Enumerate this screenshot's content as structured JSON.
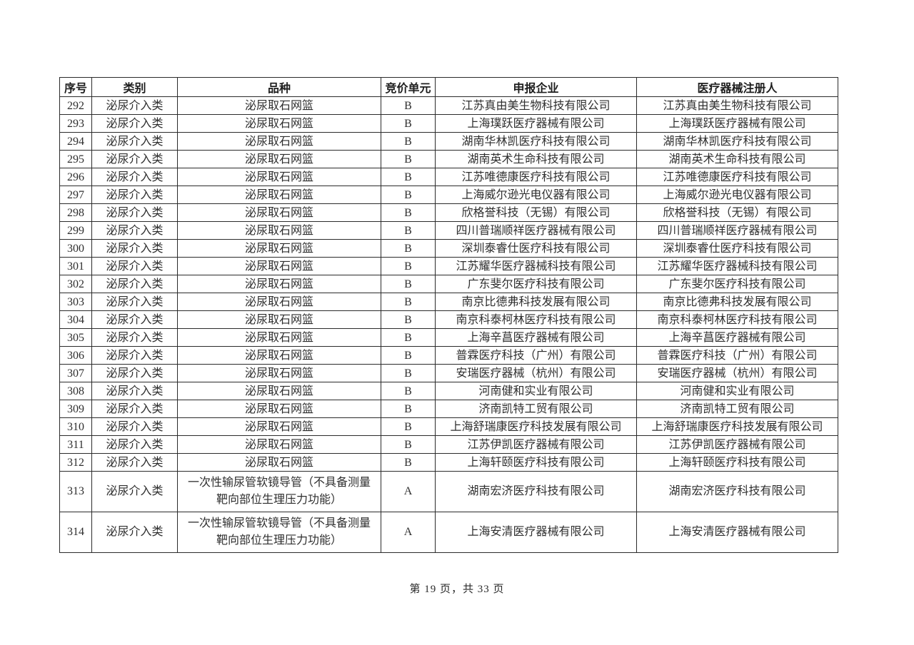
{
  "table": {
    "headers": [
      "序号",
      "类别",
      "品种",
      "竞价单元",
      "申报企业",
      "医疗器械注册人"
    ],
    "rows": [
      {
        "no": "292",
        "category": "泌尿介入类",
        "product": "泌尿取石网篮",
        "unit": "B",
        "applicant": "江苏真由美生物科技有限公司",
        "registrant": "江苏真由美生物科技有限公司"
      },
      {
        "no": "293",
        "category": "泌尿介入类",
        "product": "泌尿取石网篮",
        "unit": "B",
        "applicant": "上海璞跃医疗器械有限公司",
        "registrant": "上海璞跃医疗器械有限公司"
      },
      {
        "no": "294",
        "category": "泌尿介入类",
        "product": "泌尿取石网篮",
        "unit": "B",
        "applicant": "湖南华林凯医疗科技有限公司",
        "registrant": "湖南华林凯医疗科技有限公司"
      },
      {
        "no": "295",
        "category": "泌尿介入类",
        "product": "泌尿取石网篮",
        "unit": "B",
        "applicant": "湖南英术生命科技有限公司",
        "registrant": "湖南英术生命科技有限公司"
      },
      {
        "no": "296",
        "category": "泌尿介入类",
        "product": "泌尿取石网篮",
        "unit": "B",
        "applicant": "江苏唯德康医疗科技有限公司",
        "registrant": "江苏唯德康医疗科技有限公司"
      },
      {
        "no": "297",
        "category": "泌尿介入类",
        "product": "泌尿取石网篮",
        "unit": "B",
        "applicant": "上海威尔逊光电仪器有限公司",
        "registrant": "上海威尔逊光电仪器有限公司"
      },
      {
        "no": "298",
        "category": "泌尿介入类",
        "product": "泌尿取石网篮",
        "unit": "B",
        "applicant": "欣格誉科技（无锡）有限公司",
        "registrant": "欣格誉科技（无锡）有限公司"
      },
      {
        "no": "299",
        "category": "泌尿介入类",
        "product": "泌尿取石网篮",
        "unit": "B",
        "applicant": "四川普瑞顺祥医疗器械有限公司",
        "registrant": "四川普瑞顺祥医疗器械有限公司"
      },
      {
        "no": "300",
        "category": "泌尿介入类",
        "product": "泌尿取石网篮",
        "unit": "B",
        "applicant": "深圳泰睿仕医疗科技有限公司",
        "registrant": "深圳泰睿仕医疗科技有限公司"
      },
      {
        "no": "301",
        "category": "泌尿介入类",
        "product": "泌尿取石网篮",
        "unit": "B",
        "applicant": "江苏耀华医疗器械科技有限公司",
        "registrant": "江苏耀华医疗器械科技有限公司"
      },
      {
        "no": "302",
        "category": "泌尿介入类",
        "product": "泌尿取石网篮",
        "unit": "B",
        "applicant": "广东斐尔医疗科技有限公司",
        "registrant": "广东斐尔医疗科技有限公司"
      },
      {
        "no": "303",
        "category": "泌尿介入类",
        "product": "泌尿取石网篮",
        "unit": "B",
        "applicant": "南京比德弗科技发展有限公司",
        "registrant": "南京比德弗科技发展有限公司"
      },
      {
        "no": "304",
        "category": "泌尿介入类",
        "product": "泌尿取石网篮",
        "unit": "B",
        "applicant": "南京科泰柯林医疗科技有限公司",
        "registrant": "南京科泰柯林医疗科技有限公司"
      },
      {
        "no": "305",
        "category": "泌尿介入类",
        "product": "泌尿取石网篮",
        "unit": "B",
        "applicant": "上海辛菖医疗器械有限公司",
        "registrant": "上海辛菖医疗器械有限公司"
      },
      {
        "no": "306",
        "category": "泌尿介入类",
        "product": "泌尿取石网篮",
        "unit": "B",
        "applicant": "普霖医疗科技（广州）有限公司",
        "registrant": "普霖医疗科技（广州）有限公司"
      },
      {
        "no": "307",
        "category": "泌尿介入类",
        "product": "泌尿取石网篮",
        "unit": "B",
        "applicant": "安瑞医疗器械（杭州）有限公司",
        "registrant": "安瑞医疗器械（杭州）有限公司"
      },
      {
        "no": "308",
        "category": "泌尿介入类",
        "product": "泌尿取石网篮",
        "unit": "B",
        "applicant": "河南健和实业有限公司",
        "registrant": "河南健和实业有限公司"
      },
      {
        "no": "309",
        "category": "泌尿介入类",
        "product": "泌尿取石网篮",
        "unit": "B",
        "applicant": "济南凯特工贸有限公司",
        "registrant": "济南凯特工贸有限公司"
      },
      {
        "no": "310",
        "category": "泌尿介入类",
        "product": "泌尿取石网篮",
        "unit": "B",
        "applicant": "上海舒瑞康医疗科技发展有限公司",
        "registrant": "上海舒瑞康医疗科技发展有限公司"
      },
      {
        "no": "311",
        "category": "泌尿介入类",
        "product": "泌尿取石网篮",
        "unit": "B",
        "applicant": "江苏伊凯医疗器械有限公司",
        "registrant": "江苏伊凯医疗器械有限公司"
      },
      {
        "no": "312",
        "category": "泌尿介入类",
        "product": "泌尿取石网篮",
        "unit": "B",
        "applicant": "上海轩颐医疗科技有限公司",
        "registrant": "上海轩颐医疗科技有限公司"
      },
      {
        "no": "313",
        "category": "泌尿介入类",
        "product": "一次性输尿管软镜导管（不具备测量靶向部位生理压力功能）",
        "unit": "A",
        "applicant": "湖南宏济医疗科技有限公司",
        "registrant": "湖南宏济医疗科技有限公司"
      },
      {
        "no": "314",
        "category": "泌尿介入类",
        "product": "一次性输尿管软镜导管（不具备测量靶向部位生理压力功能）",
        "unit": "A",
        "applicant": "上海安清医疗器械有限公司",
        "registrant": "上海安清医疗器械有限公司"
      }
    ]
  },
  "page": {
    "footer": "第 19 页，共 33 页"
  }
}
